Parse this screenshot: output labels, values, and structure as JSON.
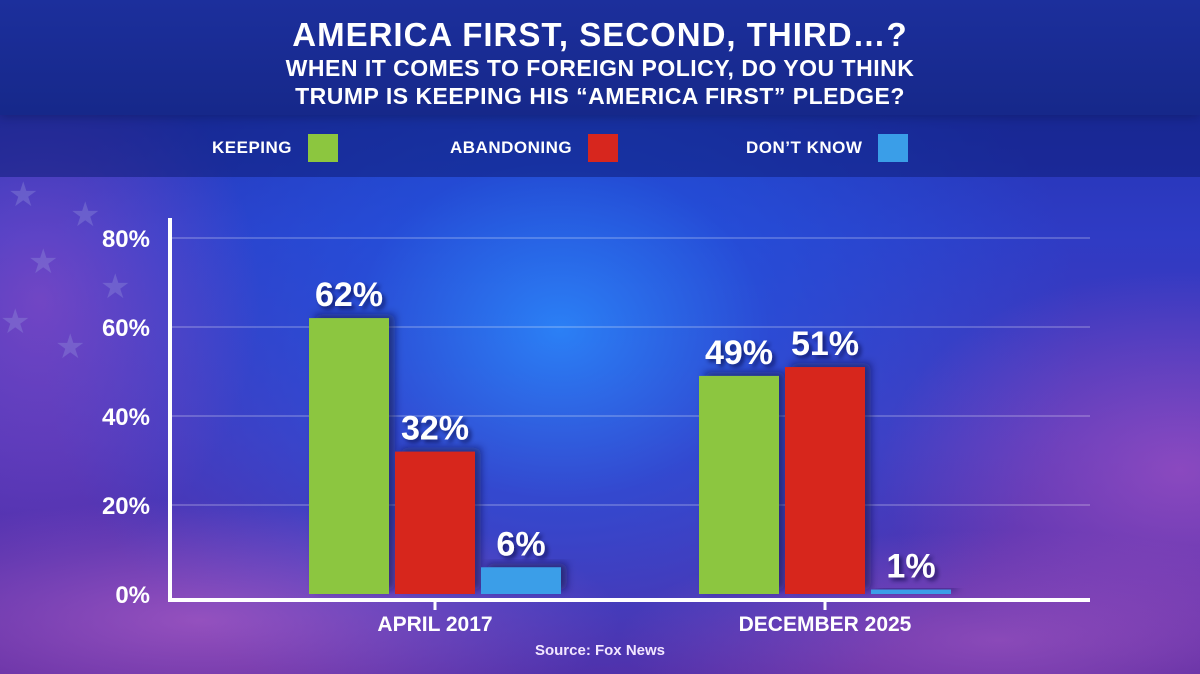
{
  "header": {
    "title": "AMERICA FIRST, SECOND, THIRD…?",
    "subtitle_line1": "WHEN IT COMES TO FOREIGN POLICY, DO YOU THINK",
    "subtitle_line2": "TRUMP IS KEEPING HIS “AMERICA FIRST” PLEDGE?"
  },
  "legend": [
    {
      "label": "KEEPING",
      "color": "#8cc63f"
    },
    {
      "label": "ABANDONING",
      "color": "#d7261e"
    },
    {
      "label": "DON’T KNOW",
      "color": "#3a9ee8"
    }
  ],
  "source": "Source: Fox News",
  "chart_data": {
    "type": "bar",
    "categories": [
      "APRIL 2017",
      "DECEMBER 2025"
    ],
    "series": [
      {
        "name": "KEEPING",
        "values": [
          62,
          49
        ],
        "labels": [
          "62%",
          "49%"
        ],
        "color": "#8cc63f"
      },
      {
        "name": "ABANDONING",
        "values": [
          32,
          51
        ],
        "labels": [
          "32%",
          "51%"
        ],
        "color": "#d7261e"
      },
      {
        "name": "DON’T KNOW",
        "values": [
          6,
          1
        ],
        "labels": [
          "6%",
          "1%"
        ],
        "color": "#3a9ee8"
      }
    ],
    "ylim": [
      0,
      80
    ],
    "yticks": [
      0,
      20,
      40,
      60,
      80
    ],
    "ytick_labels": [
      "0%",
      "20%",
      "40%",
      "60%",
      "80%"
    ],
    "grid": true,
    "legend_position": "top"
  }
}
